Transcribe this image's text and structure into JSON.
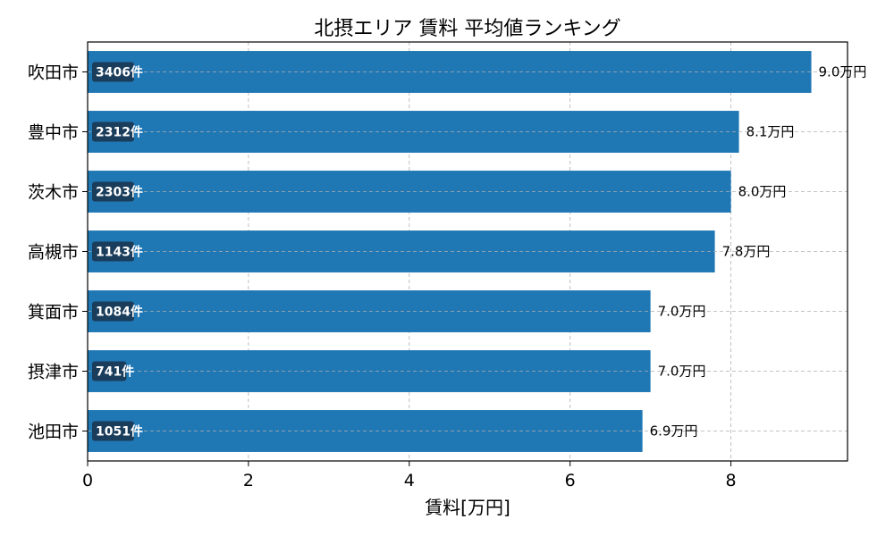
{
  "chart_data": {
    "type": "bar",
    "orientation": "horizontal",
    "title": "北摂エリア 賃料 平均値ランキング",
    "xlabel": "賃料[万円]",
    "ylabel": "",
    "xlim": [
      0,
      9.45
    ],
    "xticks": [
      0,
      2,
      4,
      6,
      8
    ],
    "grid": true,
    "bar_color": "#1f77b4",
    "count_badge_color": "#1a3d5c",
    "categories": [
      "吹田市",
      "豊中市",
      "茨木市",
      "高槻市",
      "箕面市",
      "摂津市",
      "池田市"
    ],
    "values": [
      9.0,
      8.1,
      8.0,
      7.8,
      7.0,
      7.0,
      6.9
    ],
    "value_labels": [
      "9.0万円",
      "8.1万円",
      "8.0万円",
      "7.8万円",
      "7.0万円",
      "7.0万円",
      "6.9万円"
    ],
    "count_labels": [
      "3406件",
      "2312件",
      "2303件",
      "1143件",
      "1084件",
      "741件",
      "1051件"
    ]
  }
}
